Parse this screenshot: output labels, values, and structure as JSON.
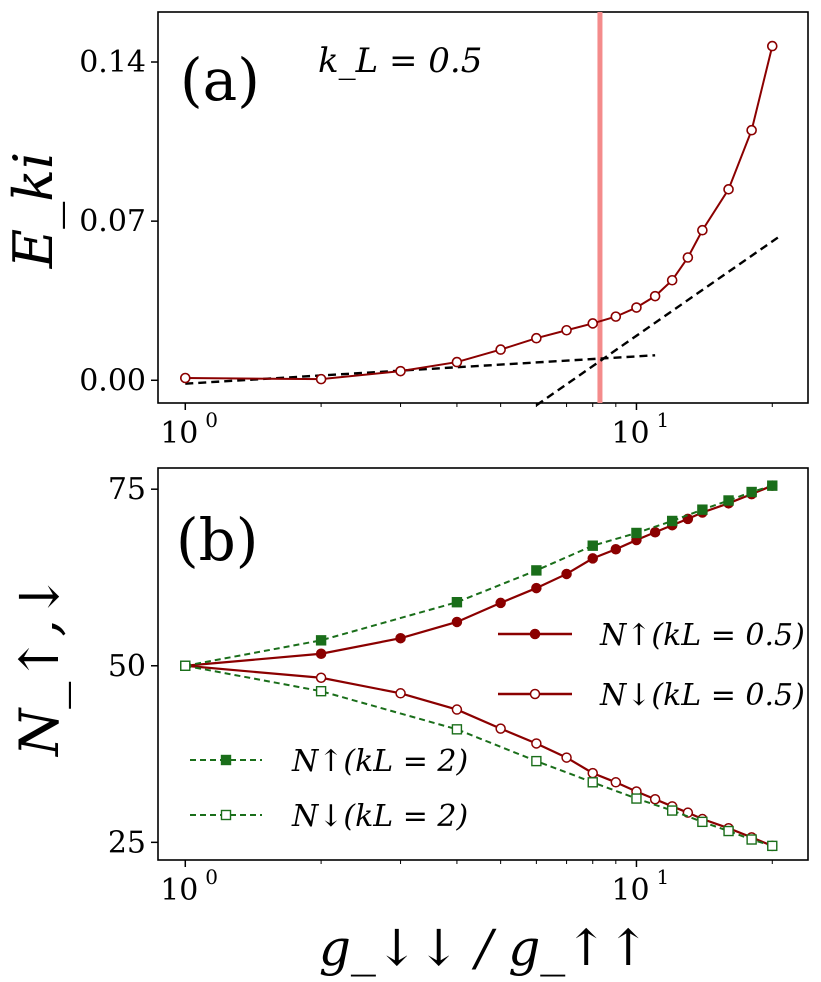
{
  "chart_data": [
    {
      "type": "line",
      "panel_label": "(a)",
      "annotation": "k_L = 0.5",
      "ylabel": "E_ki",
      "xscale": "log",
      "xlim": [
        0.87,
        24
      ],
      "ylim": [
        -0.01,
        0.162
      ],
      "yticks": [
        0.0,
        0.07,
        0.14
      ],
      "yticklabels": [
        "0.00",
        "0.07",
        "0.14"
      ],
      "xticks": [
        1,
        10
      ],
      "xticklabels": [
        "10^0",
        "10^1"
      ],
      "vline": {
        "x": 8.3,
        "color": "#f48b8b"
      },
      "series": [
        {
          "name": "E_ki (k_L = 0.5)",
          "color": "#8b0000",
          "x": [
            1,
            2,
            3,
            4,
            5,
            6,
            7,
            8,
            9,
            10,
            11,
            12,
            13,
            14,
            16,
            18,
            20
          ],
          "y": [
            0.001,
            0.0005,
            0.004,
            0.008,
            0.0135,
            0.0185,
            0.022,
            0.025,
            0.028,
            0.032,
            0.037,
            0.044,
            0.054,
            0.066,
            0.084,
            0.11,
            0.147
          ]
        }
      ],
      "fit_lines": [
        {
          "name": "fit-low",
          "color": "#000000",
          "x": [
            1,
            11
          ],
          "y": [
            -0.0015,
            0.011
          ]
        },
        {
          "name": "fit-high",
          "color": "#000000",
          "x": [
            6,
            21
          ],
          "y": [
            -0.011,
            0.064
          ]
        }
      ]
    },
    {
      "type": "line",
      "panel_label": "(b)",
      "xlabel": "g_↓↓ / g_↑↑",
      "ylabel": "N_↑,↓",
      "xscale": "log",
      "xlim": [
        0.87,
        24
      ],
      "ylim": [
        22.5,
        78
      ],
      "yticks": [
        25,
        50,
        75
      ],
      "yticklabels": [
        "25",
        "50",
        "75"
      ],
      "xticks": [
        1,
        10
      ],
      "xticklabels": [
        "10^0",
        "10^1"
      ],
      "legend": [
        "N↑(kL = 0.5)",
        "N↓(kL = 0.5)",
        "N↑(kL = 2)",
        "N↓(kL = 2)"
      ],
      "series": [
        {
          "name": "N↑(kL = 0.5)",
          "color": "#8b0000",
          "x": [
            1,
            2,
            3,
            4,
            5,
            6,
            7,
            8,
            9,
            10,
            11,
            12,
            13,
            14,
            16,
            18,
            20
          ],
          "y": [
            50,
            51.7,
            53.9,
            56.2,
            58.9,
            61.0,
            63.0,
            65.2,
            66.5,
            67.8,
            68.9,
            69.9,
            70.8,
            71.7,
            73.0,
            74.3,
            75.5
          ]
        },
        {
          "name": "N↓(kL = 0.5)",
          "color": "#8b0000",
          "x": [
            1,
            2,
            3,
            4,
            5,
            6,
            7,
            8,
            9,
            10,
            11,
            12,
            13,
            14,
            16,
            18,
            20
          ],
          "y": [
            50,
            48.3,
            46.1,
            43.8,
            41.1,
            39.0,
            37.0,
            34.8,
            33.5,
            32.2,
            31.1,
            30.1,
            29.2,
            28.3,
            27.0,
            25.7,
            24.5
          ]
        },
        {
          "name": "N↑(kL = 2)",
          "color": "#1a6e1a",
          "x": [
            1,
            2,
            4,
            6,
            8,
            10,
            12,
            14,
            16,
            18,
            20
          ],
          "y": [
            50,
            53.6,
            59.0,
            63.5,
            67.0,
            68.8,
            70.5,
            72.1,
            73.4,
            74.6,
            75.5
          ]
        },
        {
          "name": "N↓(kL = 2)",
          "color": "#1a6e1a",
          "x": [
            1,
            2,
            4,
            6,
            8,
            10,
            12,
            14,
            16,
            18,
            20
          ],
          "y": [
            50,
            46.4,
            41.0,
            36.5,
            33.5,
            31.2,
            29.5,
            27.9,
            26.6,
            25.4,
            24.5
          ]
        }
      ]
    }
  ]
}
